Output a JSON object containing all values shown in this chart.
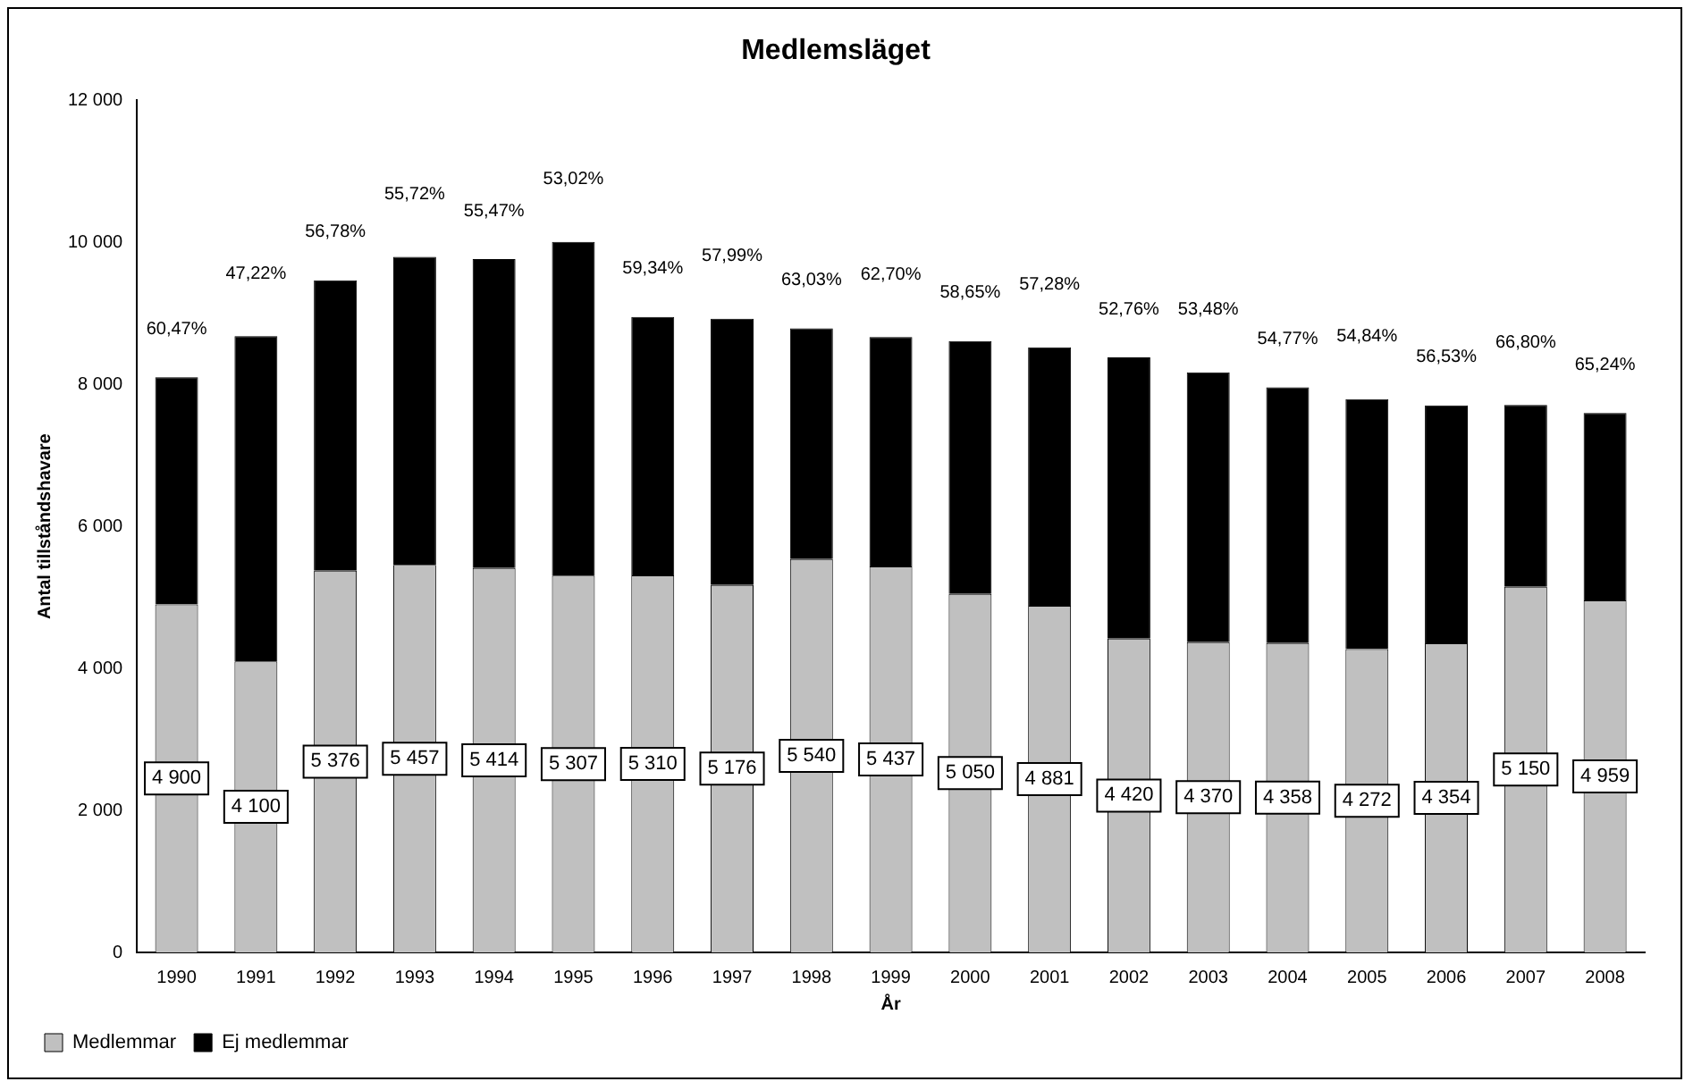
{
  "chart_data": {
    "type": "bar",
    "title": "Medlemsläget",
    "xlabel": "År",
    "ylabel": "Antal tillståndshavare",
    "categories": [
      "1990",
      "1991",
      "1992",
      "1993",
      "1994",
      "1995",
      "1996",
      "1997",
      "1998",
      "1999",
      "2000",
      "2001",
      "2002",
      "2003",
      "2004",
      "2005",
      "2006",
      "2007",
      "2008"
    ],
    "stacked": true,
    "series": [
      {
        "name": "Medlemmar",
        "color": "#c0c0c0",
        "values": [
          4900,
          4100,
          5376,
          5457,
          5414,
          5307,
          5310,
          5176,
          5540,
          5437,
          5050,
          4881,
          4420,
          4370,
          4358,
          4272,
          4354,
          5150,
          4959
        ],
        "value_labels": [
          "4 900",
          "4 100",
          "5 376",
          "5 457",
          "5 414",
          "5 307",
          "5 310",
          "5 176",
          "5 540",
          "5 437",
          "5 050",
          "4 881",
          "4 420",
          "4 370",
          "4 358",
          "4 272",
          "4 354",
          "5 150",
          "4 959"
        ]
      },
      {
        "name": "Ej medlemmar",
        "color": "#000000",
        "values": [
          3200,
          4580,
          4090,
          4340,
          4350,
          4700,
          3640,
          3750,
          3250,
          3230,
          3560,
          3640,
          3960,
          3800,
          3600,
          3520,
          3350,
          2560,
          2640
        ]
      }
    ],
    "annotations": [
      {
        "text": "60,47%",
        "x": "1990",
        "y": 8100
      },
      {
        "text": "47,22%",
        "x": "1991",
        "y": 8680
      },
      {
        "text": "56,78%",
        "x": "1992",
        "y": 9466
      },
      {
        "text": "55,72%",
        "x": "1993",
        "y": 9797
      },
      {
        "text": "55,47%",
        "x": "1994",
        "y": 9764
      },
      {
        "text": "53,02%",
        "x": "1995",
        "y": 10007
      },
      {
        "text": "59,34%",
        "x": "1996",
        "y": 8950
      },
      {
        "text": "57,99%",
        "x": "1997",
        "y": 8926
      },
      {
        "text": "63,03%",
        "x": "1998",
        "y": 8790
      },
      {
        "text": "62,70%",
        "x": "1999",
        "y": 8667
      },
      {
        "text": "58,65%",
        "x": "2000",
        "y": 8610
      },
      {
        "text": "57,28%",
        "x": "2001",
        "y": 8521
      },
      {
        "text": "52,76%",
        "x": "2002",
        "y": 8380
      },
      {
        "text": "53,48%",
        "x": "2003",
        "y": 8170
      },
      {
        "text": "54,77%",
        "x": "2004",
        "y": 7958
      },
      {
        "text": "54,84%",
        "x": "2005",
        "y": 7792
      },
      {
        "text": "56,53%",
        "x": "2006",
        "y": 7704
      },
      {
        "text": "66,80%",
        "x": "2007",
        "y": 7710
      },
      {
        "text": "65,24%",
        "x": "2008",
        "y": 7599
      }
    ],
    "ylim": [
      0,
      12000
    ],
    "yticks": [
      0,
      {
        "value": 2000,
        "label": "2 000"
      },
      {
        "value": 4000,
        "label": "4 000"
      },
      {
        "value": 6000,
        "label": "6 000"
      },
      {
        "value": 8000,
        "label": "8 000"
      },
      {
        "value": 10000,
        "label": "10 000"
      },
      {
        "value": 12000,
        "label": "12 000"
      }
    ],
    "grid": false,
    "legend": "bottom left"
  }
}
